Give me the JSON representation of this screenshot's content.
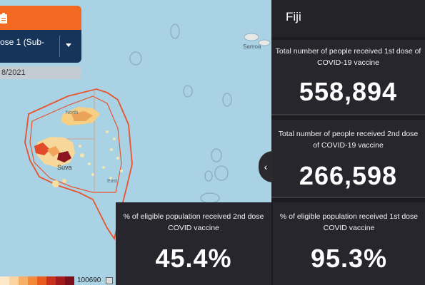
{
  "filter": {
    "indicator_label": "ose 1 (Sub-",
    "date": "8/2021"
  },
  "map": {
    "labels": {
      "north": "North",
      "suva": "Suva",
      "east": "East.",
      "samoa": "Samoa"
    },
    "legend_max": "100690",
    "legend_colors": [
      "#fce8c8",
      "#fbd4a0",
      "#f7b067",
      "#f28a3a",
      "#e85c1f",
      "#c9301d",
      "#a11a1c",
      "#7a0f1a"
    ]
  },
  "panel": {
    "title": "Fiji",
    "cards": [
      {
        "label": "Total number of people received 1st dose of COVID-19 vaccine",
        "value": "558,894"
      },
      {
        "label": "Total number of people received 2nd dose of COVID-19 vaccine",
        "value": "266,598"
      },
      {
        "label": "% of eligible population received 2nd dose COVID vaccine",
        "value": "45.4%"
      },
      {
        "label": "% of eligible population received 1st dose COVID vaccine",
        "value": "95.3%"
      }
    ],
    "collapse_glyph": "‹"
  },
  "colors": {
    "accent": "#f26a21",
    "dropdown_bg": "#16345a",
    "panel_bg": "#1c1c20",
    "card_bg": "#26262c",
    "ocean": "#a9d3e5",
    "boundary": "#e8532e"
  }
}
